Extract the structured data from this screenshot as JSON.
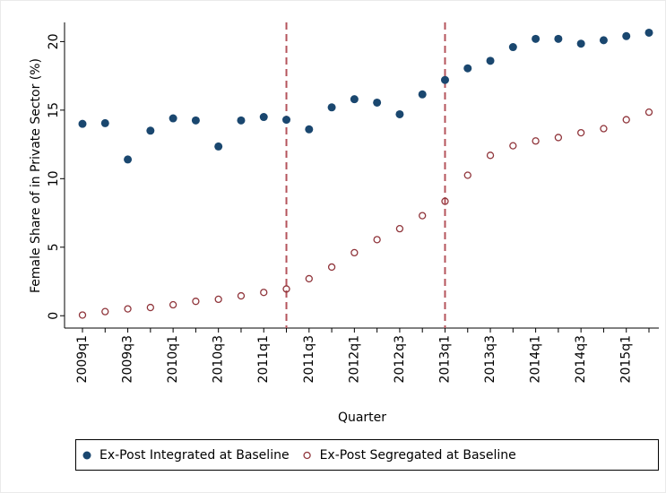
{
  "chart_data": {
    "type": "scatter",
    "y_label": "Female Share of in Private Sector (%)",
    "x_label": "Quarter",
    "categories": [
      "2009q1",
      null,
      "2009q3",
      null,
      "2010q1",
      null,
      "2010q3",
      null,
      "2011q1",
      null,
      "2011q3",
      null,
      "2012q1",
      null,
      "2012q3",
      null,
      "2013q1",
      null,
      "2013q3",
      null,
      "2014q1",
      null,
      "2014q3",
      null,
      "2015q1",
      null
    ],
    "series": [
      {
        "name": "Ex-Post Integrated at Baseline",
        "color": "#1a476f",
        "marker": "filled",
        "values": [
          14.0,
          14.05,
          11.4,
          13.5,
          14.4,
          14.25,
          12.35,
          14.25,
          14.5,
          14.3,
          13.6,
          15.2,
          15.8,
          15.55,
          14.7,
          16.15,
          17.2,
          18.05,
          18.6,
          19.6,
          20.2,
          20.2,
          19.85,
          20.1,
          20.4,
          20.65
        ]
      },
      {
        "name": "Ex-Post Segregated at Baseline",
        "color": "#90353b",
        "marker": "hollow",
        "values": [
          0.05,
          0.3,
          0.5,
          0.6,
          0.8,
          1.05,
          1.2,
          1.45,
          1.7,
          1.95,
          2.7,
          3.55,
          4.6,
          5.55,
          6.35,
          7.3,
          8.35,
          10.25,
          11.7,
          12.4,
          12.75,
          13.0,
          13.35,
          13.65,
          14.3,
          14.85
        ]
      }
    ],
    "vlines": [
      9,
      16
    ],
    "vline_color": "#b5545c",
    "ylim": [
      -0.9,
      21.4
    ],
    "yticks": [
      0,
      5,
      10,
      15,
      20
    ],
    "grid": false,
    "legend": "bottom"
  }
}
